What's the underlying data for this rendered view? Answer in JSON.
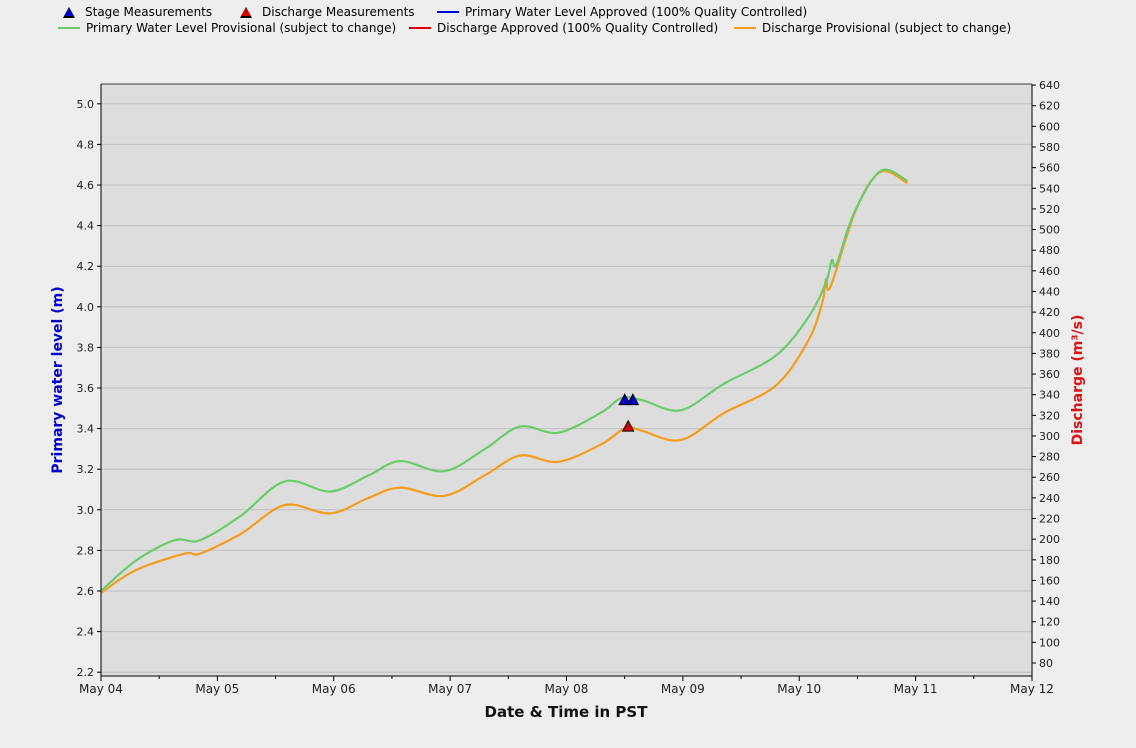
{
  "legend": {
    "items": [
      {
        "label": "Stage Measurements",
        "symbol": "triangle",
        "color": "#0000cc"
      },
      {
        "label": "Discharge Measurements",
        "symbol": "triangle",
        "color": "#dd0000"
      },
      {
        "label": "Primary Water Level Approved (100% Quality Controlled)",
        "symbol": "line",
        "color": "#0000dd"
      },
      {
        "label": "Primary Water Level Provisional (subject to change)",
        "symbol": "line",
        "color": "#6acc6a"
      },
      {
        "label": "Discharge Approved (100% Quality Controlled)",
        "symbol": "line",
        "color": "#dd0000"
      },
      {
        "label": "Discharge Provisional (subject to change)",
        "symbol": "line",
        "color": "#f39c1e"
      }
    ]
  },
  "axes": {
    "left_label": "Primary water level (m)",
    "right_label": "Discharge (m³/s)",
    "x_label": "Date & Time in PST",
    "left_ticks": [
      "2.2",
      "2.4",
      "2.6",
      "2.8",
      "3.0",
      "3.2",
      "3.4",
      "3.6",
      "3.8",
      "4.0",
      "4.2",
      "4.4",
      "4.6",
      "4.8",
      "5.0"
    ],
    "right_ticks": [
      "80",
      "100",
      "120",
      "140",
      "160",
      "180",
      "200",
      "220",
      "240",
      "260",
      "280",
      "300",
      "320",
      "340",
      "360",
      "380",
      "400",
      "420",
      "440",
      "460",
      "480",
      "500",
      "520",
      "540",
      "560",
      "580",
      "600",
      "620",
      "640"
    ],
    "x_ticks": [
      "May 04",
      "May 05",
      "May 06",
      "May 07",
      "May 08",
      "May 09",
      "May 10",
      "May 11",
      "May 12"
    ]
  },
  "colors": {
    "plot_bg": "#dddddd",
    "grid": "#c0c0c0",
    "page_bg": "#eeeeee",
    "left_label": "#0000cc",
    "right_label": "#dd1111"
  },
  "chart_data": {
    "type": "line",
    "title": "",
    "xlabel": "Date & Time in PST",
    "ylabel": "Primary water level (m)",
    "y2label": "Discharge (m³/s)",
    "xlim": [
      "May 04",
      "May 12"
    ],
    "ylim": [
      2.2,
      5.0
    ],
    "y2lim": [
      80,
      640
    ],
    "grid": true,
    "legend_position": "top",
    "series": [
      {
        "name": "Primary Water Level Provisional (subject to change)",
        "axis": "left",
        "color": "#6acc6a",
        "x_days": [
          0.0,
          0.3,
          0.63,
          0.85,
          1.2,
          1.58,
          1.97,
          2.3,
          2.57,
          2.95,
          3.3,
          3.6,
          3.93,
          4.3,
          4.47,
          4.65,
          4.98,
          5.35,
          5.8,
          6.08,
          6.23,
          6.28,
          6.32,
          6.47,
          6.7,
          6.93
        ],
        "values": [
          2.6,
          2.75,
          2.85,
          2.85,
          2.97,
          3.14,
          3.09,
          3.17,
          3.24,
          3.19,
          3.3,
          3.41,
          3.38,
          3.48,
          3.55,
          3.54,
          3.49,
          3.62,
          3.76,
          3.95,
          4.12,
          4.23,
          4.21,
          4.46,
          4.67,
          4.62
        ]
      },
      {
        "name": "Discharge Provisional (subject to change)",
        "axis": "right",
        "color": "#f39c1e",
        "x_days": [
          0.0,
          0.3,
          0.72,
          0.85,
          1.2,
          1.58,
          1.97,
          2.3,
          2.57,
          2.95,
          3.3,
          3.6,
          3.93,
          4.3,
          4.51,
          4.65,
          4.98,
          5.35,
          5.8,
          6.08,
          6.2,
          6.23,
          6.27,
          6.49,
          6.7,
          6.93
        ],
        "values": [
          148,
          170,
          186,
          186,
          205,
          233,
          225,
          240,
          250,
          242,
          262,
          281,
          275,
          292,
          308,
          305,
          296,
          322,
          349,
          393,
          430,
          452,
          445,
          520,
          556,
          545
        ]
      }
    ],
    "measurements": [
      {
        "name": "Stage Measurements",
        "axis": "left",
        "color": "#0000cc",
        "points": [
          {
            "x_days": 4.5,
            "value": 3.54
          },
          {
            "x_days": 4.57,
            "value": 3.54
          }
        ]
      },
      {
        "name": "Discharge Measurements",
        "axis": "right",
        "color": "#dd0000",
        "points": [
          {
            "x_days": 4.53,
            "value": 309
          }
        ]
      }
    ]
  }
}
